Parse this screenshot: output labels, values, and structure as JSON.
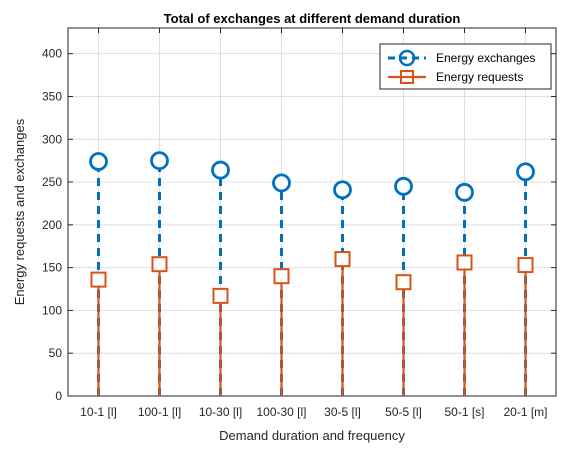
{
  "chart_data": {
    "type": "stem",
    "title": "Total of exchanges at different demand duration",
    "xlabel": "Demand duration and frequency",
    "ylabel": "Energy requests and exchanges",
    "categories": [
      "10-1 [l]",
      "100-1 [l]",
      "10-30 [l]",
      "100-30 [l]",
      "30-5 [l]",
      "50-5 [l]",
      "50-1 [s]",
      "20-1 [m]"
    ],
    "ylim": [
      0,
      430
    ],
    "yticks": [
      0,
      50,
      100,
      150,
      200,
      250,
      300,
      350,
      400
    ],
    "grid": true,
    "legend_position": "top-right",
    "series": [
      {
        "name": "Energy exchanges",
        "values": [
          274,
          275,
          264,
          249,
          241,
          245,
          238,
          262
        ],
        "color": "#0072BD",
        "line_style": "dashed",
        "marker": "circle"
      },
      {
        "name": "Energy requests",
        "values": [
          136,
          154,
          117,
          140,
          160,
          133,
          156,
          153
        ],
        "color": "#D95319",
        "line_style": "solid",
        "marker": "square"
      }
    ]
  }
}
